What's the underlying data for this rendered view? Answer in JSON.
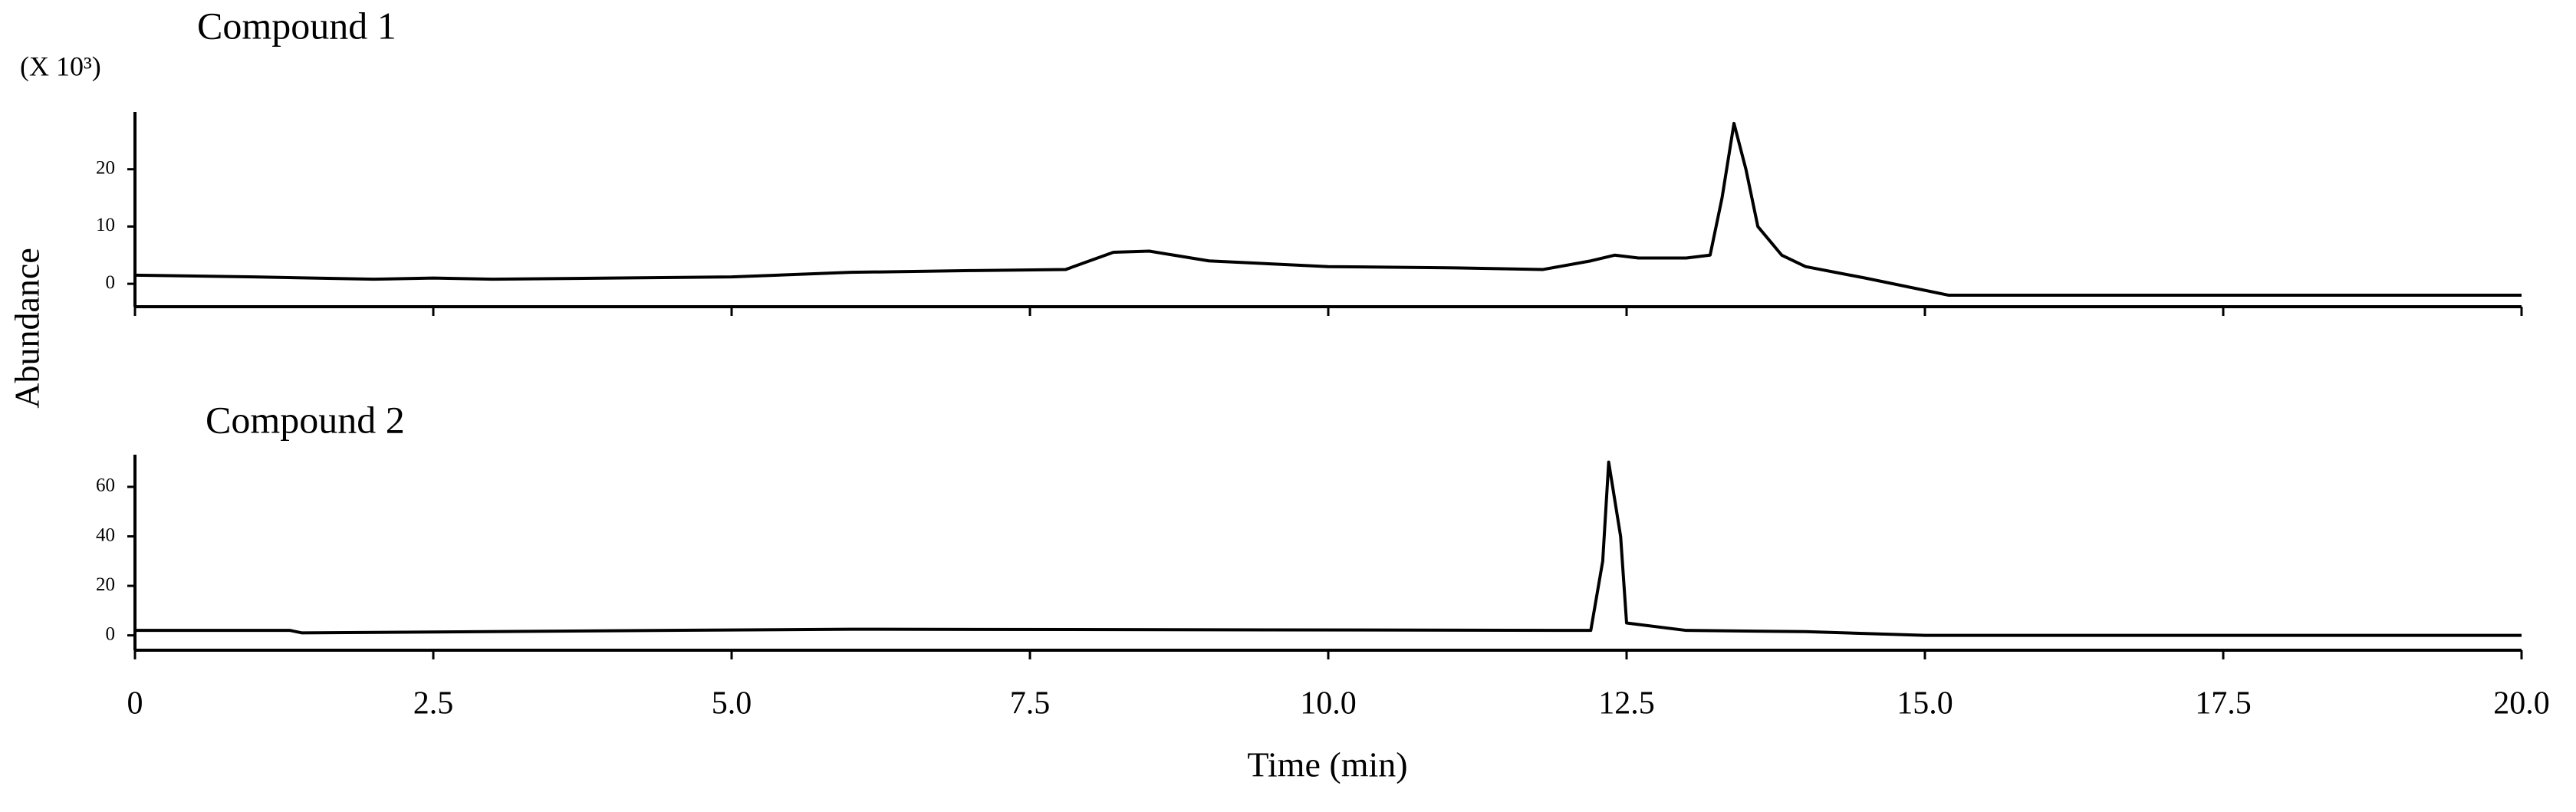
{
  "chart_data": [
    {
      "type": "line",
      "title": "Compound 1",
      "y_unit": "(X 10³)",
      "ylabel": "Abundance",
      "color": "#000000",
      "xtick_labels": false,
      "x": [
        0,
        1,
        2,
        2.5,
        3,
        4,
        5,
        6,
        7,
        7.8,
        8.2,
        8.5,
        9,
        9.5,
        10,
        11,
        11.8,
        12.2,
        12.4,
        12.6,
        13,
        13.2,
        13.3,
        13.4,
        13.5,
        13.6,
        13.8,
        14,
        14.5,
        15.2,
        20
      ],
      "values": [
        1.5,
        1.2,
        0.8,
        1,
        0.8,
        1,
        1.2,
        2,
        2.3,
        2.5,
        5.5,
        5.7,
        4,
        3.5,
        3,
        2.8,
        2.5,
        4,
        5,
        4.5,
        4.5,
        5,
        15,
        28,
        20,
        10,
        5,
        3,
        1,
        -2,
        -2
      ],
      "xlim": [
        0,
        20
      ],
      "xticks": [
        0,
        2.5,
        5,
        7.5,
        10,
        12.5,
        15,
        17.5,
        20
      ],
      "ylim": [
        -4,
        30
      ],
      "yticks": [
        0,
        10,
        20
      ]
    },
    {
      "type": "line",
      "title": "Compound 2",
      "xlabel": "Time (min)",
      "color": "#000000",
      "xtick_labels": true,
      "x": [
        0,
        1.3,
        1.4,
        6,
        12.2,
        12.3,
        12.35,
        12.45,
        12.5,
        13,
        14,
        15,
        20
      ],
      "values": [
        2,
        2,
        1,
        2.5,
        2,
        30,
        70,
        40,
        5,
        2,
        1.5,
        0,
        0
      ],
      "xlim": [
        0,
        20
      ],
      "xticks": [
        0,
        2.5,
        {
          "value": 5,
          "label": "5.0"
        },
        7.5,
        {
          "value": 10,
          "label": "10.0"
        },
        12.5,
        {
          "value": 15,
          "label": "15.0"
        },
        17.5,
        {
          "value": 20,
          "label": "20.0"
        }
      ],
      "ylim": [
        -6,
        73
      ],
      "yticks": [
        0,
        20,
        40,
        60
      ]
    }
  ]
}
